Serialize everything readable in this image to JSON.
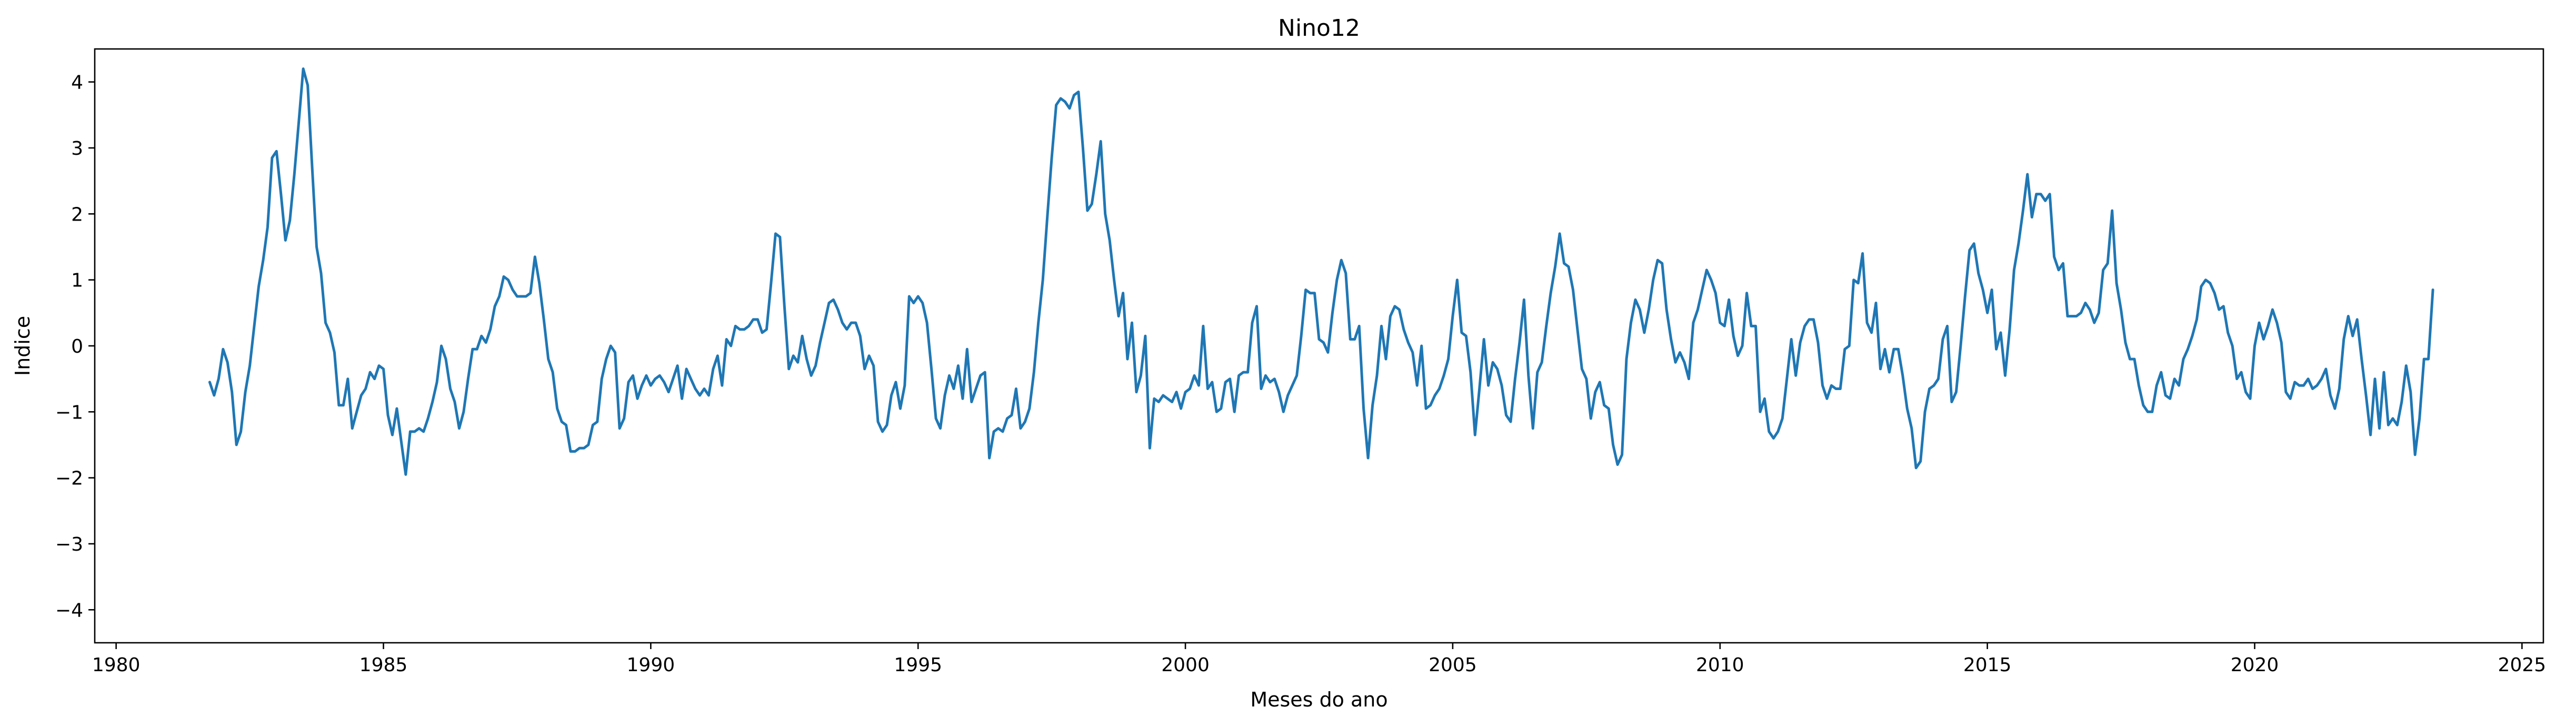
{
  "chart_data": {
    "type": "line",
    "title": "Nino12",
    "xlabel": "Meses do ano",
    "ylabel": "Indice",
    "xlim": [
      1979.6,
      2025.4
    ],
    "ylim": [
      -4.5,
      4.5
    ],
    "x_ticks": [
      1980,
      1985,
      1990,
      1995,
      2000,
      2005,
      2010,
      2015,
      2020,
      2025
    ],
    "y_ticks": [
      -4,
      -3,
      -2,
      -1,
      0,
      1,
      2,
      3,
      4
    ],
    "x_tick_labels": [
      "1980",
      "1985",
      "1990",
      "1995",
      "2000",
      "2005",
      "2010",
      "2015",
      "2020",
      "2025"
    ],
    "y_tick_labels": [
      "−4",
      "−3",
      "−2",
      "−1",
      "0",
      "1",
      "2",
      "3",
      "4"
    ],
    "grid": false,
    "legend": null,
    "colors": {
      "series": "#1f77b4"
    },
    "series": [
      {
        "x_start": 1981.75,
        "step_months": 1,
        "values": [
          -0.55,
          -0.75,
          -0.5,
          -0.05,
          -0.25,
          -0.7,
          -1.5,
          -1.3,
          -0.7,
          -0.3,
          0.3,
          0.9,
          1.3,
          1.8,
          2.85,
          2.95,
          2.3,
          1.6,
          1.9,
          2.6,
          3.4,
          4.2,
          3.95,
          2.7,
          1.5,
          1.1,
          0.35,
          0.2,
          -0.1,
          -0.9,
          -0.9,
          -0.5,
          -1.25,
          -1.0,
          -0.75,
          -0.65,
          -0.4,
          -0.5,
          -0.3,
          -0.35,
          -1.05,
          -1.35,
          -0.95,
          -1.45,
          -1.95,
          -1.3,
          -1.3,
          -1.25,
          -1.3,
          -1.1,
          -0.85,
          -0.55,
          0.0,
          -0.2,
          -0.65,
          -0.85,
          -1.25,
          -1.0,
          -0.5,
          -0.05,
          -0.05,
          0.15,
          0.05,
          0.25,
          0.6,
          0.75,
          1.05,
          1.0,
          0.85,
          0.75,
          0.75,
          0.75,
          0.8,
          1.35,
          0.95,
          0.4,
          -0.2,
          -0.4,
          -0.95,
          -1.15,
          -1.2,
          -1.6,
          -1.6,
          -1.55,
          -1.55,
          -1.5,
          -1.2,
          -1.15,
          -0.5,
          -0.2,
          0.0,
          -0.1,
          -1.25,
          -1.1,
          -0.55,
          -0.45,
          -0.8,
          -0.6,
          -0.45,
          -0.6,
          -0.5,
          -0.45,
          -0.55,
          -0.7,
          -0.5,
          -0.3,
          -0.8,
          -0.35,
          -0.5,
          -0.65,
          -0.75,
          -0.65,
          -0.75,
          -0.35,
          -0.15,
          -0.6,
          0.1,
          0.0,
          0.3,
          0.25,
          0.25,
          0.3,
          0.4,
          0.4,
          0.2,
          0.25,
          0.95,
          1.7,
          1.65,
          0.6,
          -0.35,
          -0.15,
          -0.25,
          0.15,
          -0.2,
          -0.45,
          -0.3,
          0.05,
          0.35,
          0.65,
          0.7,
          0.55,
          0.35,
          0.25,
          0.35,
          0.35,
          0.15,
          -0.35,
          -0.15,
          -0.3,
          -1.15,
          -1.3,
          -1.2,
          -0.75,
          -0.55,
          -0.95,
          -0.6,
          0.75,
          0.65,
          0.75,
          0.65,
          0.35,
          -0.35,
          -1.1,
          -1.25,
          -0.75,
          -0.45,
          -0.65,
          -0.3,
          -0.8,
          -0.05,
          -0.85,
          -0.65,
          -0.45,
          -0.4,
          -1.7,
          -1.3,
          -1.25,
          -1.3,
          -1.1,
          -1.05,
          -0.65,
          -1.25,
          -1.15,
          -0.95,
          -0.4,
          0.35,
          1.0,
          1.95,
          2.85,
          3.65,
          3.75,
          3.7,
          3.6,
          3.8,
          3.85,
          3.0,
          2.05,
          2.15,
          2.6,
          3.1,
          2.0,
          1.6,
          1.0,
          0.45,
          0.8,
          -0.2,
          0.35,
          -0.7,
          -0.45,
          0.15,
          -1.55,
          -0.8,
          -0.85,
          -0.75,
          -0.8,
          -0.85,
          -0.7,
          -0.95,
          -0.7,
          -0.65,
          -0.45,
          -0.6,
          0.3,
          -0.65,
          -0.55,
          -1.0,
          -0.95,
          -0.55,
          -0.5,
          -1.0,
          -0.45,
          -0.4,
          -0.4,
          0.35,
          0.6,
          -0.65,
          -0.45,
          -0.55,
          -0.5,
          -0.7,
          -1.0,
          -0.75,
          -0.6,
          -0.45,
          0.15,
          0.85,
          0.8,
          0.8,
          0.1,
          0.05,
          -0.1,
          0.5,
          1.0,
          1.3,
          1.1,
          0.1,
          0.1,
          0.3,
          -0.95,
          -1.7,
          -0.9,
          -0.45,
          0.3,
          -0.2,
          0.45,
          0.6,
          0.55,
          0.25,
          0.05,
          -0.1,
          -0.6,
          0.0,
          -0.95,
          -0.9,
          -0.75,
          -0.65,
          -0.45,
          -0.2,
          0.45,
          1.0,
          0.2,
          0.15,
          -0.4,
          -1.35,
          -0.65,
          0.1,
          -0.6,
          -0.25,
          -0.35,
          -0.6,
          -1.05,
          -1.15,
          -0.5,
          0.05,
          0.7,
          -0.45,
          -1.25,
          -0.4,
          -0.25,
          0.3,
          0.8,
          1.2,
          1.7,
          1.25,
          1.2,
          0.85,
          0.25,
          -0.35,
          -0.5,
          -1.1,
          -0.7,
          -0.55,
          -0.9,
          -0.95,
          -1.5,
          -1.8,
          -1.65,
          -0.2,
          0.35,
          0.7,
          0.55,
          0.2,
          0.55,
          1.0,
          1.3,
          1.25,
          0.55,
          0.1,
          -0.25,
          -0.1,
          -0.25,
          -0.5,
          0.35,
          0.55,
          0.85,
          1.15,
          1.0,
          0.8,
          0.35,
          0.3,
          0.7,
          0.15,
          -0.15,
          0.0,
          0.8,
          0.3,
          0.3,
          -1.0,
          -0.8,
          -1.3,
          -1.4,
          -1.3,
          -1.1,
          -0.5,
          0.1,
          -0.45,
          0.05,
          0.3,
          0.4,
          0.4,
          0.05,
          -0.6,
          -0.8,
          -0.6,
          -0.65,
          -0.65,
          -0.05,
          0.0,
          1.0,
          0.95,
          1.4,
          0.35,
          0.2,
          0.65,
          -0.35,
          -0.05,
          -0.4,
          -0.05,
          -0.05,
          -0.45,
          -0.95,
          -1.25,
          -1.85,
          -1.75,
          -1.0,
          -0.65,
          -0.6,
          -0.5,
          0.1,
          0.3,
          -0.85,
          -0.7,
          0.0,
          0.75,
          1.45,
          1.55,
          1.1,
          0.85,
          0.5,
          0.85,
          -0.05,
          0.2,
          -0.45,
          0.25,
          1.15,
          1.55,
          2.05,
          2.6,
          1.95,
          2.3,
          2.3,
          2.2,
          2.3,
          1.35,
          1.15,
          1.25,
          0.45,
          0.45,
          0.45,
          0.5,
          0.65,
          0.55,
          0.35,
          0.5,
          1.15,
          1.25,
          2.05,
          0.95,
          0.55,
          0.05,
          -0.2,
          -0.2,
          -0.6,
          -0.9,
          -1.0,
          -1.0,
          -0.6,
          -0.4,
          -0.75,
          -0.8,
          -0.5,
          -0.6,
          -0.2,
          -0.05,
          0.15,
          0.4,
          0.9,
          1.0,
          0.95,
          0.8,
          0.55,
          0.6,
          0.2,
          0.0,
          -0.5,
          -0.4,
          -0.7,
          -0.8,
          0.0,
          0.35,
          0.1,
          0.3,
          0.55,
          0.35,
          0.05,
          -0.7,
          -0.8,
          -0.55,
          -0.6,
          -0.6,
          -0.5,
          -0.65,
          -0.6,
          -0.5,
          -0.35,
          -0.75,
          -0.95,
          -0.65,
          0.1,
          0.45,
          0.15,
          0.4,
          -0.2,
          -0.75,
          -1.35,
          -0.5,
          -1.25,
          -0.4,
          -1.2,
          -1.1,
          -1.2,
          -0.85,
          -0.3,
          -0.7,
          -1.65,
          -1.1,
          -0.2,
          -0.2,
          0.85
        ]
      }
    ]
  }
}
